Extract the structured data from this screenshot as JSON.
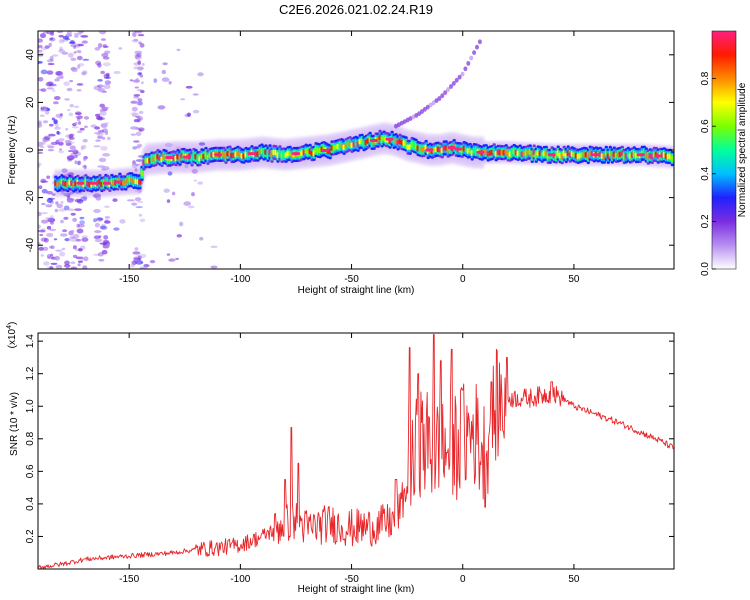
{
  "title": "C2E6.2026.021.02.24.R19",
  "chart_data": [
    {
      "type": "heatmap",
      "name": "doppler-spectrogram",
      "xlabel": "Height of straight line (km)",
      "ylabel": "Frequency (Hz)",
      "xlim": [
        -191,
        95
      ],
      "ylim": [
        -50,
        50
      ],
      "xticks": [
        -150,
        -100,
        -50,
        0,
        50
      ],
      "xtick_labels": [
        "-150",
        "-100",
        "-50",
        "0",
        "50"
      ],
      "yticks": [
        -40,
        -20,
        0,
        20,
        40
      ],
      "ytick_labels": [
        "-40",
        "-20",
        "0",
        "20",
        "40"
      ],
      "main_ridge": {
        "x": [
          -191,
          -180,
          -170,
          -160,
          -150,
          -145,
          -143,
          -130,
          -120,
          -110,
          -100,
          -90,
          -80,
          -70,
          -60,
          -50,
          -40,
          -35,
          -30,
          -25,
          -20,
          -15,
          -10,
          -5,
          0,
          5,
          10,
          20,
          40,
          60,
          80,
          95
        ],
        "y": [
          -14,
          -14,
          -14,
          -14,
          -13,
          -13,
          -4,
          -3,
          -3,
          -2,
          -2,
          -1,
          -2,
          -1,
          0,
          2,
          4,
          5,
          4,
          2,
          1,
          0,
          0,
          1,
          0,
          -1,
          -1,
          -1,
          -2,
          -2,
          -2,
          -3
        ]
      },
      "secondary_trace": {
        "x": [
          -30,
          -20,
          -10,
          0,
          8
        ],
        "y": [
          10,
          15,
          22,
          32,
          46
        ]
      },
      "colorbar": {
        "label": "Normalized spectral amplitude",
        "range": [
          0,
          1
        ],
        "ticks": [
          0.0,
          0.2,
          0.4,
          0.6,
          0.8
        ],
        "tick_labels": [
          "0.0",
          "0.2",
          "0.4",
          "0.6",
          "0.8"
        ],
        "colors": [
          "#ffffff",
          "#b68ff0",
          "#7a2ee0",
          "#2020ff",
          "#00bfff",
          "#00ff9c",
          "#7cff00",
          "#ffff00",
          "#ff8a00",
          "#ff1a00",
          "#ff2080"
        ]
      }
    },
    {
      "type": "line",
      "name": "snr-profile",
      "xlabel": "Height of straight line (km)",
      "ylabel": "SNR (10 * v/v)",
      "yscale_label": "(x10",
      "yscale_exp": "4",
      "yscale_suffix": ")",
      "xlim": [
        -191,
        95
      ],
      "ylim": [
        0,
        1.45
      ],
      "xticks": [
        -150,
        -100,
        -50,
        0,
        50
      ],
      "xtick_labels": [
        "-150",
        "-100",
        "-50",
        "0",
        "50"
      ],
      "yticks": [
        0.2,
        0.4,
        0.6,
        0.8,
        1.0,
        1.2,
        1.4
      ],
      "ytick_labels": [
        "0.2",
        "0.4",
        "0.6",
        "0.8",
        "1.0",
        "1.2",
        "1.4"
      ],
      "series": [
        {
          "name": "SNR",
          "color": "#e8262a",
          "x": [
            -191,
            -180,
            -170,
            -160,
            -150,
            -140,
            -130,
            -120,
            -110,
            -100,
            -90,
            -80,
            -75,
            -70,
            -60,
            -50,
            -40,
            -30,
            -25,
            -22,
            -20,
            -15,
            -12,
            -10,
            -5,
            0,
            5,
            10,
            15,
            20,
            30,
            40,
            45,
            50,
            60,
            70,
            80,
            90,
            95
          ],
          "y": [
            0.01,
            0.03,
            0.06,
            0.07,
            0.08,
            0.09,
            0.1,
            0.12,
            0.13,
            0.15,
            0.2,
            0.28,
            0.3,
            0.25,
            0.28,
            0.25,
            0.26,
            0.3,
            0.5,
            0.6,
            0.8,
            0.75,
            0.72,
            0.7,
            0.75,
            0.8,
            0.85,
            0.7,
            1.0,
            1.05,
            1.05,
            1.08,
            1.05,
            1.0,
            0.95,
            0.9,
            0.84,
            0.78,
            0.74
          ]
        }
      ],
      "peaks": {
        "x": [
          -80,
          -77,
          -74,
          -30,
          -24,
          -20,
          -13,
          -10,
          -5,
          0,
          10,
          13,
          20,
          40
        ],
        "y": [
          0.55,
          0.87,
          0.65,
          0.55,
          1.36,
          1.2,
          1.44,
          1.28,
          1.35,
          1.1,
          0.38,
          1.15,
          1.3,
          1.15
        ]
      }
    }
  ]
}
